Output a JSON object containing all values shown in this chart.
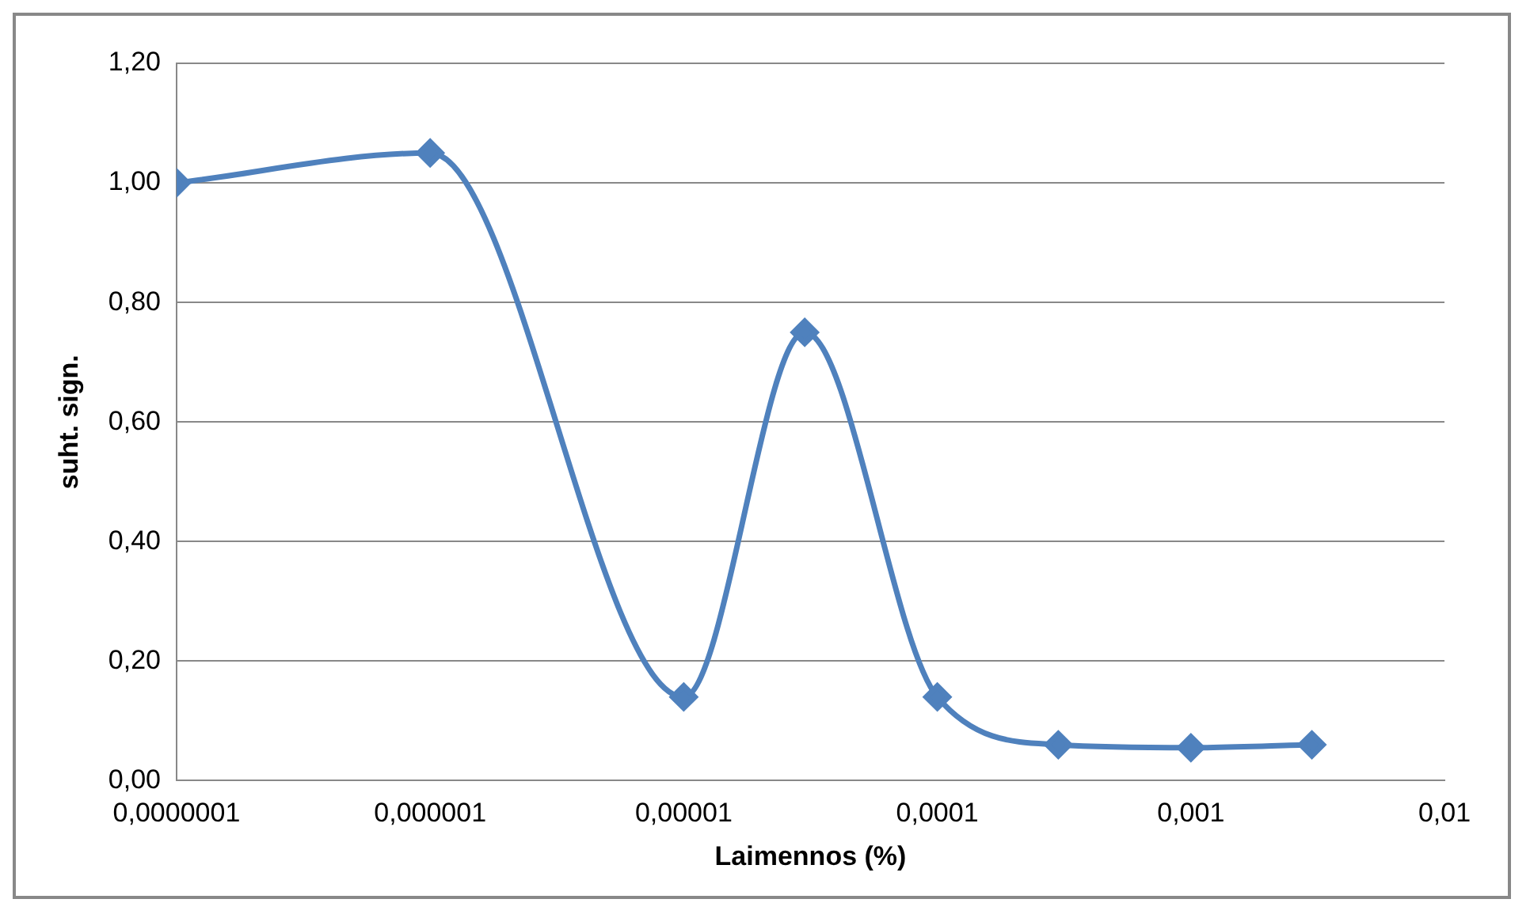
{
  "chart_data": {
    "type": "line",
    "xlabel": "Laimennos (%)",
    "ylabel": "suht. sign.",
    "log": "x",
    "x": [
      1e-07,
      1e-06,
      1e-05,
      3e-05,
      0.0001,
      0.0003,
      0.001,
      0.003
    ],
    "series": [
      {
        "color": "#4f81bd",
        "values": [
          1.0,
          1.05,
          0.14,
          0.75,
          0.14,
          0.06,
          0.055,
          0.06
        ]
      }
    ],
    "xlim": [
      1e-07,
      0.01
    ],
    "xticks": [
      {
        "value": 1e-07,
        "label": "0,0000001"
      },
      {
        "value": 1e-06,
        "label": "0,000001"
      },
      {
        "value": 1e-05,
        "label": "0,00001"
      },
      {
        "value": 0.0001,
        "label": "0,0001"
      },
      {
        "value": 0.001,
        "label": "0,001"
      },
      {
        "value": 0.01,
        "label": "0,01"
      }
    ],
    "ylim": [
      0,
      1.2
    ],
    "yticks": [
      {
        "value": 0,
        "label": "0,00"
      },
      {
        "value": 0.2,
        "label": "0,20"
      },
      {
        "value": 0.4,
        "label": "0,40"
      },
      {
        "value": 0.6,
        "label": "0,60"
      },
      {
        "value": 0.8,
        "label": "0,80"
      },
      {
        "value": 1.0,
        "label": "1,00"
      },
      {
        "value": 1.2,
        "label": "1,20"
      }
    ],
    "grid": "y",
    "legend": false,
    "marker": "diamond",
    "line_style": "solid"
  }
}
